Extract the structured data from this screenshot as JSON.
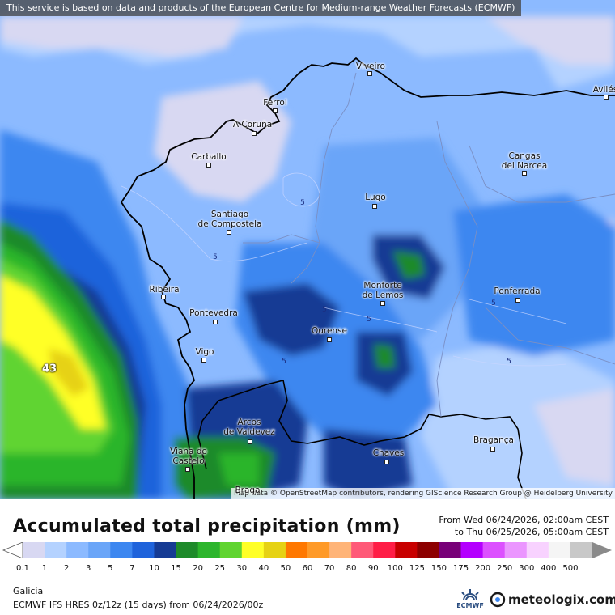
{
  "map": {
    "notice": "This service is based on data and products of the European Centre for Medium-range Weather Forecasts (ECMWF)",
    "attribution": "Map data © OpenStreetMap contributors, rendering GIScience Research Group @ Heidelberg University",
    "cities": [
      {
        "name": "Viveiro",
        "label": "Viveiro"
      },
      {
        "name": "Aviles",
        "label": "Avilés"
      },
      {
        "name": "Ferrol",
        "label": "Ferrol"
      },
      {
        "name": "A Coruna",
        "label": "A Coruña"
      },
      {
        "name": "Carballo",
        "label": "Carballo"
      },
      {
        "name": "Cangas del Narcea",
        "label": "Cangas\ndel Narcea"
      },
      {
        "name": "Lugo",
        "label": "Lugo"
      },
      {
        "name": "Santiago de Compostela",
        "label": "Santiago\nde Compostela"
      },
      {
        "name": "Ribeira",
        "label": "Ribeira"
      },
      {
        "name": "Pontevedra",
        "label": "Pontevedra"
      },
      {
        "name": "Monforte de Lemos",
        "label": "Monforte\nde Lemos"
      },
      {
        "name": "Ponferrada",
        "label": "Ponferrada"
      },
      {
        "name": "Ourense",
        "label": "Ourense"
      },
      {
        "name": "Vigo",
        "label": "Vigo"
      },
      {
        "name": "Arcos de Valdevez",
        "label": "Arcos\nde Valdevez"
      },
      {
        "name": "Chaves",
        "label": "Chaves"
      },
      {
        "name": "Braganca",
        "label": "Bragança"
      },
      {
        "name": "Viana do Castelo",
        "label": "Viana do\nCastelo"
      },
      {
        "name": "Braga",
        "label": "Braga"
      }
    ],
    "contour_labels": [
      "5",
      "5",
      "5",
      "5",
      "5",
      "5",
      "5"
    ],
    "max_value": "43"
  },
  "legend": {
    "title": "Accumulated total precipitation (mm)",
    "period_from": "From Wed 06/24/2026, 02:00am CEST",
    "period_to": "to Thu 06/25/2026, 05:00am CEST",
    "levels": [
      "0.1",
      "1",
      "2",
      "3",
      "5",
      "7",
      "10",
      "15",
      "20",
      "25",
      "30",
      "40",
      "50",
      "60",
      "70",
      "80",
      "90",
      "100",
      "125",
      "150",
      "175",
      "200",
      "250",
      "300",
      "400",
      "500"
    ],
    "colors": [
      "#d8d8f2",
      "#b4d2ff",
      "#8cbaff",
      "#6aa5f8",
      "#3d87f0",
      "#1f63db",
      "#163b94",
      "#1e8a2a",
      "#2cb52c",
      "#60d430",
      "#ffff28",
      "#e6d214",
      "#ff7800",
      "#ff9a28",
      "#ffb478",
      "#ff5a78",
      "#ff1e46",
      "#c80000",
      "#8c0000",
      "#780078",
      "#b400ff",
      "#dc50ff",
      "#eb96ff",
      "#f8d2ff",
      "#f5f5f5",
      "#c8c8c8"
    ]
  },
  "footer": {
    "region": "Galicia",
    "model": "ECMWF IFS HRES 0z/12z (15 days) from 06/24/2026/00z",
    "ecmwf": "ECMWF",
    "brand": "meteologix.com"
  }
}
